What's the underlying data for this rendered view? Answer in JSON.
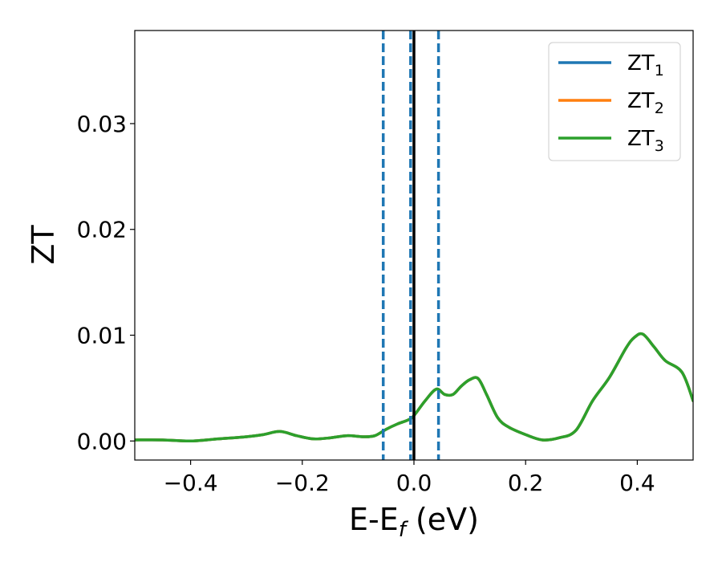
{
  "chart_data": {
    "type": "line",
    "xlabel": "E-E",
    "xlabel_sub": "f",
    "xlabel_unit": " (eV)",
    "ylabel": "ZT",
    "xlim": [
      -0.5,
      0.5
    ],
    "ylim": [
      -0.0018,
      0.0388
    ],
    "xticks": [
      -0.4,
      -0.2,
      0.0,
      0.2,
      0.4
    ],
    "xtick_labels": [
      "−0.4",
      "−0.2",
      "0.0",
      "0.2",
      "0.4"
    ],
    "yticks": [
      0.0,
      0.01,
      0.02,
      0.03
    ],
    "ytick_labels": [
      "0.00",
      "0.01",
      "0.02",
      "0.03"
    ],
    "grid": false,
    "legend": {
      "position": "top-right"
    },
    "vlines": [
      {
        "x": -0.055,
        "style": "dashed",
        "color": "#1f77b4"
      },
      {
        "x": -0.006,
        "style": "dashed",
        "color": "#1f77b4"
      },
      {
        "x": 0.044,
        "style": "dashed",
        "color": "#1f77b4"
      },
      {
        "x": 0.0,
        "style": "solid",
        "color": "#000000"
      }
    ],
    "x": [
      -0.5,
      -0.45,
      -0.4,
      -0.35,
      -0.3,
      -0.27,
      -0.24,
      -0.21,
      -0.18,
      -0.15,
      -0.12,
      -0.09,
      -0.07,
      -0.05,
      -0.03,
      -0.01,
      0.0,
      0.02,
      0.04,
      0.055,
      0.07,
      0.085,
      0.1,
      0.115,
      0.13,
      0.15,
      0.17,
      0.2,
      0.23,
      0.26,
      0.29,
      0.32,
      0.35,
      0.38,
      0.395,
      0.41,
      0.43,
      0.45,
      0.48,
      0.5
    ],
    "series": [
      {
        "name": "ZT",
        "name_sub": "1",
        "color": "#1f77b4",
        "values": [
          0.0001,
          0.0001,
          0.0,
          0.0002,
          0.0004,
          0.0006,
          0.0009,
          0.0005,
          0.0002,
          0.0003,
          0.0005,
          0.0004,
          0.0005,
          0.0011,
          0.0016,
          0.002,
          0.0024,
          0.0038,
          0.0049,
          0.0044,
          0.0044,
          0.0052,
          0.0058,
          0.0059,
          0.0044,
          0.0022,
          0.0013,
          0.0006,
          0.0001,
          0.0003,
          0.001,
          0.0038,
          0.006,
          0.0088,
          0.0098,
          0.0101,
          0.0089,
          0.0076,
          0.0065,
          0.0038
        ]
      },
      {
        "name": "ZT",
        "name_sub": "2",
        "color": "#ff7f0e",
        "values": [
          0.0001,
          0.0001,
          0.0,
          0.0002,
          0.0004,
          0.0006,
          0.0009,
          0.0005,
          0.0002,
          0.0003,
          0.0005,
          0.0004,
          0.0005,
          0.0011,
          0.0016,
          0.002,
          0.0024,
          0.0038,
          0.0049,
          0.0044,
          0.0044,
          0.0052,
          0.0058,
          0.0059,
          0.0044,
          0.0022,
          0.0013,
          0.0006,
          0.0001,
          0.0003,
          0.001,
          0.0038,
          0.006,
          0.0088,
          0.0098,
          0.0101,
          0.0089,
          0.0076,
          0.0065,
          0.0038
        ]
      },
      {
        "name": "ZT",
        "name_sub": "3",
        "color": "#2ca02c",
        "values": [
          0.0001,
          0.0001,
          0.0,
          0.0002,
          0.0004,
          0.0006,
          0.0009,
          0.0005,
          0.0002,
          0.0003,
          0.0005,
          0.0004,
          0.0005,
          0.0011,
          0.0016,
          0.002,
          0.0024,
          0.0038,
          0.0049,
          0.0044,
          0.0044,
          0.0052,
          0.0058,
          0.0059,
          0.0044,
          0.0022,
          0.0013,
          0.0006,
          0.0001,
          0.0003,
          0.001,
          0.0038,
          0.006,
          0.0088,
          0.0098,
          0.0101,
          0.0089,
          0.0076,
          0.0065,
          0.0038
        ]
      }
    ]
  }
}
